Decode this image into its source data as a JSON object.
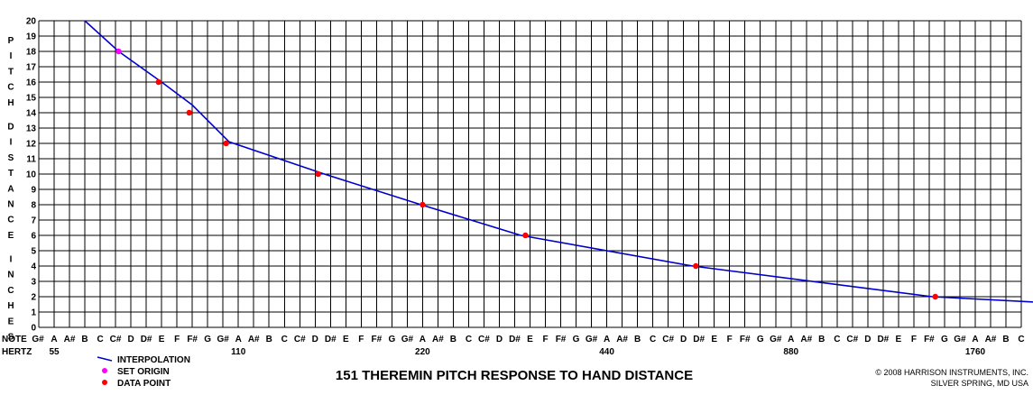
{
  "chart_data": {
    "type": "line",
    "title": "151 THEREMIN PITCH RESPONSE TO HAND DISTANCE",
    "ylabel": "PITCH DISTANCE INCHES",
    "ylim": [
      0,
      20
    ],
    "yticks": [
      0,
      1,
      2,
      3,
      4,
      5,
      6,
      7,
      8,
      9,
      10,
      11,
      12,
      13,
      14,
      15,
      16,
      17,
      18,
      19,
      20
    ],
    "grid": true,
    "x_row_labels": {
      "note": "NOTE",
      "hertz": "HERTZ"
    },
    "notes": [
      "G#",
      "A",
      "A#",
      "B",
      "C",
      "C#",
      "D",
      "D#",
      "E",
      "F",
      "F#",
      "G",
      "G#",
      "A",
      "A#",
      "B",
      "C",
      "C#",
      "D",
      "D#",
      "E",
      "F",
      "F#",
      "G",
      "G#",
      "A",
      "A#",
      "B",
      "C",
      "C#",
      "D",
      "D#",
      "E",
      "F",
      "F#",
      "G",
      "G#",
      "A",
      "A#",
      "B",
      "C",
      "C#",
      "D",
      "D#",
      "E",
      "F",
      "F#",
      "G",
      "G#",
      "A",
      "A#",
      "B",
      "C",
      "C#",
      "D",
      "D#",
      "E",
      "F",
      "F#",
      "G",
      "G#",
      "A",
      "A#",
      "B",
      "C"
    ],
    "hertz_labels": [
      {
        "index": 1,
        "label": "55"
      },
      {
        "index": 13,
        "label": "110"
      },
      {
        "index": 25,
        "label": "220"
      },
      {
        "index": 37,
        "label": "440"
      },
      {
        "index": 49,
        "label": "880"
      },
      {
        "index": 61,
        "label": "1760"
      }
    ],
    "series": [
      {
        "name": "INTERPOLATION",
        "kind": "line",
        "color": "#0000cc",
        "points": [
          [
            3.0,
            20
          ],
          [
            5.2,
            18
          ],
          [
            8.0,
            16
          ],
          [
            10.0,
            14.5
          ],
          [
            12.4,
            12.1
          ],
          [
            18.6,
            10
          ],
          [
            24.9,
            8
          ],
          [
            31.4,
            6
          ],
          [
            42.6,
            4
          ],
          [
            58.2,
            2
          ],
          [
            64.8,
            1.65
          ]
        ]
      },
      {
        "name": "SET ORIGIN",
        "kind": "points",
        "color": "#ff00ff",
        "points": [
          [
            5.2,
            18
          ]
        ]
      },
      {
        "name": "DATA POINT",
        "kind": "points",
        "color": "#ff0000",
        "points": [
          [
            7.8,
            16
          ],
          [
            9.8,
            14
          ],
          [
            12.2,
            12
          ],
          [
            18.2,
            10
          ],
          [
            25.0,
            8
          ],
          [
            31.7,
            6
          ],
          [
            42.8,
            4
          ],
          [
            58.4,
            2
          ]
        ]
      }
    ],
    "legend_position": "bottom-left"
  },
  "credit": {
    "line1": "© 2008 HARRISON INSTRUMENTS, INC.",
    "line2": "SILVER SPRING, MD USA"
  }
}
